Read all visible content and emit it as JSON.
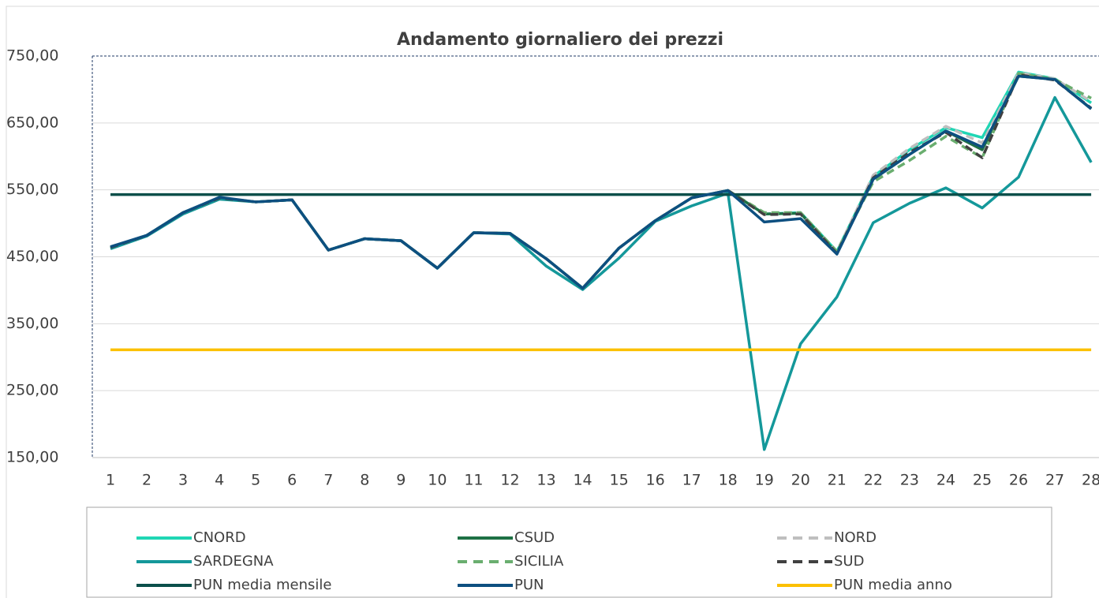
{
  "chart_data": {
    "type": "line",
    "title": "Andamento giornaliero dei prezzi",
    "categories": [
      "1",
      "2",
      "3",
      "4",
      "5",
      "6",
      "7",
      "8",
      "9",
      "10",
      "11",
      "12",
      "13",
      "14",
      "15",
      "16",
      "17",
      "18",
      "19",
      "20",
      "21",
      "22",
      "23",
      "24",
      "25",
      "26",
      "27",
      "28"
    ],
    "ylim": [
      150,
      750
    ],
    "yticks": [
      {
        "value": 150,
        "label": "150,00"
      },
      {
        "value": 250,
        "label": "250,00"
      },
      {
        "value": 350,
        "label": "350,00"
      },
      {
        "value": 450,
        "label": "450,00"
      },
      {
        "value": 550,
        "label": "550,00"
      },
      {
        "value": 650,
        "label": "650,00"
      },
      {
        "value": 750,
        "label": "750,00"
      }
    ],
    "grid": true,
    "legend": "bottom",
    "series": [
      {
        "name": "CNORD",
        "color": "#1fd6b4",
        "dashed": false,
        "values": [
          464,
          482,
          516,
          538,
          532,
          535,
          460,
          477,
          474,
          433,
          486,
          485,
          447,
          403,
          463,
          504,
          538,
          549,
          514,
          516,
          458,
          570,
          610,
          643,
          628,
          726,
          716,
          680
        ]
      },
      {
        "name": "CSUD",
        "color": "#1e7145",
        "dashed": false,
        "values": [
          464,
          482,
          516,
          538,
          532,
          535,
          460,
          477,
          474,
          433,
          486,
          485,
          447,
          403,
          463,
          504,
          538,
          549,
          514,
          515,
          455,
          566,
          603,
          638,
          610,
          720,
          715,
          671
        ]
      },
      {
        "name": "NORD",
        "color": "#bfbfbf",
        "dashed": true,
        "values": [
          464,
          482,
          516,
          538,
          532,
          535,
          460,
          477,
          474,
          433,
          486,
          485,
          447,
          403,
          463,
          504,
          538,
          549,
          514,
          516,
          458,
          572,
          612,
          645,
          620,
          725,
          716,
          682
        ]
      },
      {
        "name": "SARDEGNA",
        "color": "#14989a",
        "dashed": false,
        "values": [
          462,
          481,
          514,
          536,
          532,
          535,
          460,
          477,
          474,
          433,
          486,
          484,
          436,
          401,
          448,
          503,
          526,
          545,
          162,
          320,
          390,
          501,
          530,
          553,
          523,
          569,
          688,
          591
        ]
      },
      {
        "name": "SICILIA",
        "color": "#6aae6f",
        "dashed": true,
        "values": [
          464,
          482,
          516,
          538,
          532,
          535,
          460,
          477,
          474,
          433,
          486,
          485,
          447,
          403,
          463,
          504,
          538,
          549,
          516,
          516,
          458,
          562,
          594,
          630,
          598,
          724,
          715,
          687
        ]
      },
      {
        "name": "SUD",
        "color": "#404040",
        "dashed": true,
        "values": [
          464,
          482,
          516,
          538,
          532,
          535,
          460,
          477,
          474,
          433,
          486,
          485,
          447,
          403,
          463,
          504,
          538,
          549,
          513,
          514,
          455,
          568,
          606,
          636,
          598,
          722,
          714,
          672
        ]
      },
      {
        "name": "PUN media mensile",
        "color": "#0b4f4a",
        "dashed": false,
        "values": [
          543,
          543,
          543,
          543,
          543,
          543,
          543,
          543,
          543,
          543,
          543,
          543,
          543,
          543,
          543,
          543,
          543,
          543,
          543,
          543,
          543,
          543,
          543,
          543,
          543,
          543,
          543,
          543
        ]
      },
      {
        "name": "PUN",
        "color": "#0d4f80",
        "dashed": false,
        "values": [
          465,
          482,
          516,
          539,
          532,
          535,
          460,
          477,
          474,
          433,
          486,
          485,
          447,
          403,
          463,
          504,
          538,
          549,
          502,
          507,
          454,
          566,
          603,
          638,
          614,
          720,
          715,
          671
        ]
      },
      {
        "name": "PUN media anno",
        "color": "#fcc000",
        "dashed": false,
        "values": [
          311,
          311,
          311,
          311,
          311,
          311,
          311,
          311,
          311,
          311,
          311,
          311,
          311,
          311,
          311,
          311,
          311,
          311,
          311,
          311,
          311,
          311,
          311,
          311,
          311,
          311,
          311,
          311
        ]
      }
    ]
  }
}
